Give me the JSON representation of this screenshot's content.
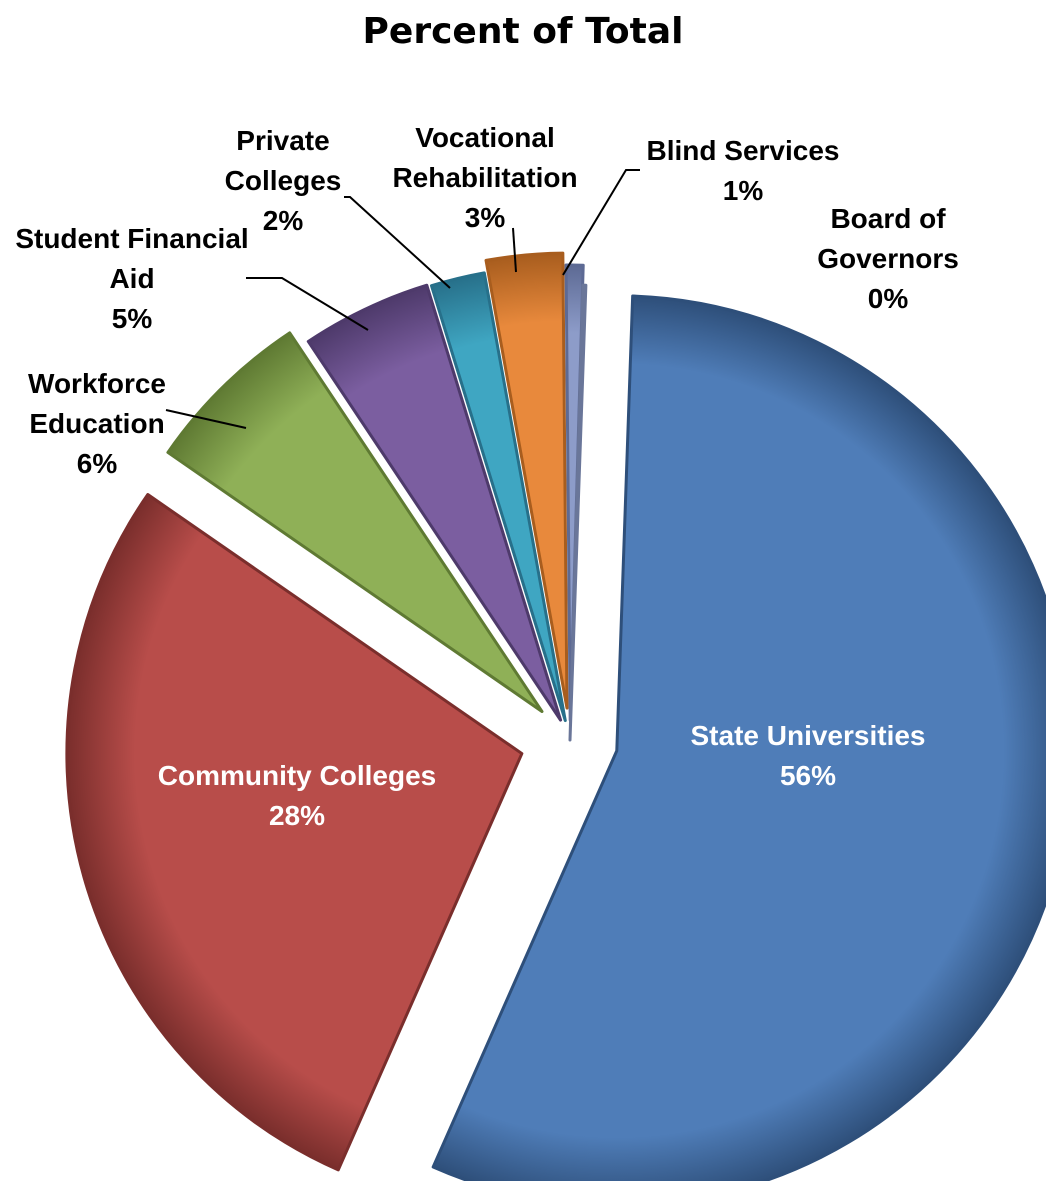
{
  "chart_data": {
    "type": "pie",
    "title": "Percent of Total",
    "slices": [
      {
        "label_lines": [
          "State Universities"
        ],
        "value_label": "56%",
        "value": 56.0,
        "color": "#4F7DB8",
        "dark": "#2E4F7A",
        "label_color": "#FFFFFF"
      },
      {
        "label_lines": [
          "Community Colleges"
        ],
        "value_label": "28%",
        "value": 28.0,
        "color": "#B84D4A",
        "dark": "#7A2E2C",
        "label_color": "#FFFFFF"
      },
      {
        "label_lines": [
          "Workforce",
          "Education"
        ],
        "value_label": "6%",
        "value": 6.0,
        "color": "#8FB057",
        "dark": "#5F7A33",
        "label_color": "#000000"
      },
      {
        "label_lines": [
          "Student Financial",
          "Aid"
        ],
        "value_label": "5%",
        "value": 4.6,
        "color": "#7B5EA0",
        "dark": "#4E3A6B",
        "label_color": "#000000"
      },
      {
        "label_lines": [
          "Private",
          "Colleges"
        ],
        "value_label": "2%",
        "value": 1.9,
        "color": "#3FA6C2",
        "dark": "#27708A",
        "label_color": "#000000"
      },
      {
        "label_lines": [
          "Vocational",
          "Rehabilitation"
        ],
        "value_label": "3%",
        "value": 2.7,
        "color": "#E8893C",
        "dark": "#A85D1E",
        "label_color": "#000000"
      },
      {
        "label_lines": [
          "Blind Services"
        ],
        "value_label": "1%",
        "value": 0.6,
        "color": "#8D9CC9",
        "dark": "#5D6A94",
        "label_color": "#000000"
      },
      {
        "label_lines": [
          "Board of",
          "Governors"
        ],
        "value_label": "0%",
        "value": 0.1,
        "color": "#9BA8CF",
        "dark": "#6A7699",
        "label_color": "#000000"
      }
    ],
    "legend": "none"
  }
}
